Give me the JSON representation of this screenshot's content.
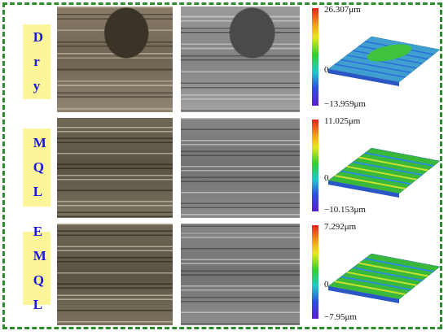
{
  "rows": [
    {
      "label": "Dry",
      "max": "26.307μm",
      "zero": "0",
      "min": "−13.959μm"
    },
    {
      "label": "MQL",
      "max": "11.025μm",
      "zero": "0",
      "min": "−10.153μm"
    },
    {
      "label": "EMQL",
      "max": "7.292μm",
      "zero": "0",
      "min": "−7.95μm"
    }
  ]
}
